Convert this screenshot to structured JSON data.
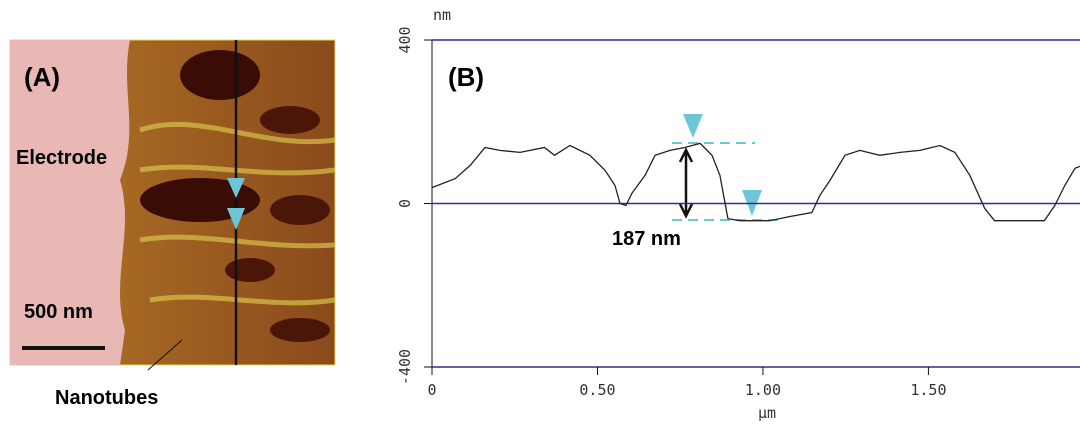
{
  "panel_a": {
    "label": "(A)",
    "electrode": "Electrode",
    "scale_bar": "500 nm",
    "nanotubes": "Nanotubes"
  },
  "chart_data": {
    "type": "line",
    "panel_label": "(B)",
    "y_unit": "nm",
    "x_label": "µm",
    "annotations": [
      "187 nm"
    ],
    "x": [
      0,
      0.07,
      0.115,
      0.16,
      0.205,
      0.266,
      0.34,
      0.37,
      0.417,
      0.477,
      0.523,
      0.553,
      0.568,
      0.586,
      0.604,
      0.644,
      0.674,
      0.719,
      0.764,
      0.81,
      0.846,
      0.87,
      0.894,
      0.93,
      1.02,
      1.08,
      1.148,
      1.172,
      1.202,
      1.248,
      1.293,
      1.353,
      1.414,
      1.474,
      1.535,
      1.58,
      1.625,
      1.67,
      1.7,
      1.85,
      1.882,
      1.912,
      1.943,
      1.958
    ],
    "values": [
      39,
      61,
      93,
      137,
      130,
      125,
      137,
      118,
      142,
      118,
      81,
      44,
      0,
      -5,
      25,
      69,
      118,
      130,
      137,
      147,
      118,
      69,
      -37,
      -42,
      -42,
      -32,
      -22,
      20,
      56,
      118,
      130,
      118,
      125,
      130,
      142,
      125,
      69,
      -12,
      -42,
      -42,
      -5,
      44,
      86,
      91
    ],
    "color": "#222222",
    "xlim": [
      0,
      1.958
    ],
    "ylim": [
      -400,
      400
    ],
    "xticks": [
      0,
      {
        "value": 0.5,
        "label": "0.50"
      },
      {
        "value": 1,
        "label": "1.00"
      },
      {
        "value": 1.5,
        "label": "1.50"
      }
    ],
    "yticks": [
      -400,
      0,
      400
    ],
    "grid": true,
    "grid_color": "#2b2b9a"
  }
}
